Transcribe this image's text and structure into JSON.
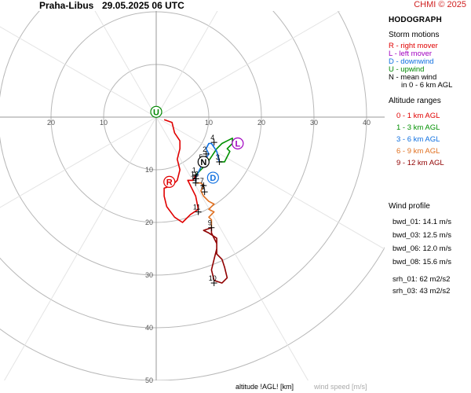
{
  "station": "Praha-Libus",
  "datetime": "29.05.2025 06 UTC",
  "copyright": "CHMI © 2025",
  "panel": {
    "title": "HODOGRAPH",
    "storm_motions_title": "Storm motions",
    "storm_motions": [
      {
        "label": "R - right mover",
        "color": "#e00000"
      },
      {
        "label": "L - left mover",
        "color": "#a000c0"
      },
      {
        "label": "D - downwind",
        "color": "#1070e0"
      },
      {
        "label": "U - upwind",
        "color": "#008800"
      },
      {
        "label": "N - mean wind",
        "color": "#000000"
      }
    ],
    "mean_wind_note": "in 0 - 6 km AGL",
    "altitude_title": "Altitude ranges",
    "altitude_ranges": [
      {
        "label": "0 - 1 km AGL",
        "color": "#e00000"
      },
      {
        "label": "1 - 3 km AGL",
        "color": "#009000"
      },
      {
        "label": "3 - 6 km AGL",
        "color": "#1070e0"
      },
      {
        "label": "6 - 9 km AGL",
        "color": "#e07020"
      },
      {
        "label": "9 - 12 km AGL",
        "color": "#900000"
      }
    ],
    "wind_profile_title": "Wind profile",
    "wind_profile": [
      "bwd_01: 14.1 m/s",
      "bwd_03: 12.5 m/s",
      "bwd_06: 12.0 m/s",
      "bwd_08: 15.6 m/s"
    ],
    "srh": [
      "srh_01: 62 m2/s2",
      "srh_03: 43 m2/s2"
    ]
  },
  "footer": {
    "left": "altitude !AGL! [km]",
    "right": "wind speed [m/s]"
  },
  "chart_data": {
    "type": "line",
    "title": "HODOGRAPH",
    "ring_labels": [
      "10",
      "20",
      "30",
      "40",
      "50"
    ],
    "x_tick_labels": [
      "20",
      "10",
      "10",
      "20",
      "30",
      "40"
    ],
    "x_tick_values": [
      -20,
      -10,
      10,
      20,
      30,
      40
    ],
    "y_tick_labels": [
      "10",
      "20",
      "30",
      "40",
      "50"
    ],
    "y_tick_values": [
      10,
      20,
      30,
      40,
      50
    ],
    "axis_range_u": [
      -29.5,
      60
    ],
    "axis_range_v": [
      -22,
      50
    ],
    "units": "m/s",
    "series": [
      {
        "name": "0 - 1 km AGL",
        "color": "#e00000",
        "points": [
          [
            1.5,
            0.5
          ],
          [
            3,
            1
          ],
          [
            3.5,
            3
          ],
          [
            4.5,
            4.5
          ],
          [
            4.5,
            6
          ],
          [
            4,
            8
          ],
          [
            4.5,
            10
          ],
          [
            4,
            12
          ],
          [
            3,
            13
          ],
          [
            1.5,
            13.5
          ],
          [
            1.5,
            15
          ],
          [
            2,
            17
          ],
          [
            3.5,
            19
          ],
          [
            5,
            20
          ],
          [
            6.5,
            18.5
          ],
          [
            8,
            17.5
          ],
          [
            7.5,
            15
          ],
          [
            6.5,
            13
          ],
          [
            6,
            12
          ],
          [
            7,
            12
          ],
          [
            7.5,
            11
          ]
        ]
      },
      {
        "name": "1 - 3 km AGL",
        "color": "#009000",
        "points": [
          [
            7.5,
            11
          ],
          [
            8.5,
            10
          ],
          [
            9.5,
            9
          ],
          [
            10.5,
            7.5
          ],
          [
            11.5,
            6
          ],
          [
            12.5,
            5
          ],
          [
            13.5,
            4.5
          ],
          [
            14.5,
            4
          ],
          [
            14.5,
            5
          ],
          [
            13.5,
            6
          ],
          [
            14,
            6.5
          ],
          [
            13,
            8.5
          ],
          [
            12,
            8.5
          ]
        ]
      },
      {
        "name": "3 - 6 km AGL",
        "color": "#1070e0",
        "points": [
          [
            12,
            8.5
          ],
          [
            11.5,
            6.5
          ],
          [
            10.5,
            5
          ],
          [
            10,
            5
          ],
          [
            9.5,
            6
          ],
          [
            10,
            7
          ],
          [
            9,
            8.5
          ],
          [
            8.5,
            9.5
          ],
          [
            8,
            10.5
          ],
          [
            7.5,
            11.5
          ],
          [
            7.5,
            12.5
          ]
        ]
      },
      {
        "name": "6 - 9 km AGL",
        "color": "#e07020",
        "points": [
          [
            7.5,
            12.5
          ],
          [
            8.5,
            12.5
          ],
          [
            9,
            13
          ],
          [
            8.5,
            14
          ],
          [
            9,
            15
          ],
          [
            10,
            16
          ],
          [
            11,
            16.5
          ],
          [
            10,
            17.5
          ],
          [
            11,
            18
          ],
          [
            10,
            19
          ],
          [
            10.5,
            19.5
          ],
          [
            10.5,
            21
          ]
        ]
      },
      {
        "name": "9 - 12 km AGL",
        "color": "#900000",
        "points": [
          [
            10.5,
            21
          ],
          [
            9,
            21.5
          ],
          [
            10,
            22
          ],
          [
            11.5,
            23
          ],
          [
            11.5,
            25
          ],
          [
            11,
            27
          ],
          [
            10.5,
            29
          ],
          [
            11,
            31
          ],
          [
            12.5,
            31.5
          ],
          [
            13.5,
            30.5
          ],
          [
            13,
            28.5
          ],
          [
            12.5,
            27
          ],
          [
            11.5,
            26
          ],
          [
            11.5,
            24
          ],
          [
            11,
            23
          ],
          [
            10.5,
            22
          ],
          [
            10.5,
            21
          ]
        ]
      }
    ],
    "altitude_markers": [
      {
        "label": "1",
        "u": 7.5,
        "v": 11
      },
      {
        "label": "2",
        "u": 9.5,
        "v": 7
      },
      {
        "label": "3",
        "u": 12,
        "v": 8.5
      },
      {
        "label": "4",
        "u": 11,
        "v": 4.8
      },
      {
        "label": "5",
        "u": 8.8,
        "v": 8.5
      },
      {
        "label": "6",
        "u": 7.5,
        "v": 12.5
      },
      {
        "label": "7",
        "u": 9,
        "v": 13
      },
      {
        "label": "8",
        "u": 9.2,
        "v": 14.2
      },
      {
        "label": "9",
        "u": 10.5,
        "v": 21
      },
      {
        "label": "10",
        "u": 11,
        "v": 31.5
      },
      {
        "label": "11",
        "u": 8,
        "v": 18
      },
      {
        "label": "12",
        "u": 7.6,
        "v": 11.7
      }
    ],
    "storm_motions": [
      {
        "label": "U",
        "u": 0,
        "v": -1,
        "color": "#008800"
      },
      {
        "label": "L",
        "u": 15.5,
        "v": 5,
        "color": "#a000c0"
      },
      {
        "label": "N",
        "u": 9,
        "v": 8.5,
        "color": "#000000"
      },
      {
        "label": "D",
        "u": 10.8,
        "v": 11.5,
        "color": "#1070e0"
      },
      {
        "label": "R",
        "u": 2.5,
        "v": 12.3,
        "color": "#e00000"
      }
    ]
  }
}
